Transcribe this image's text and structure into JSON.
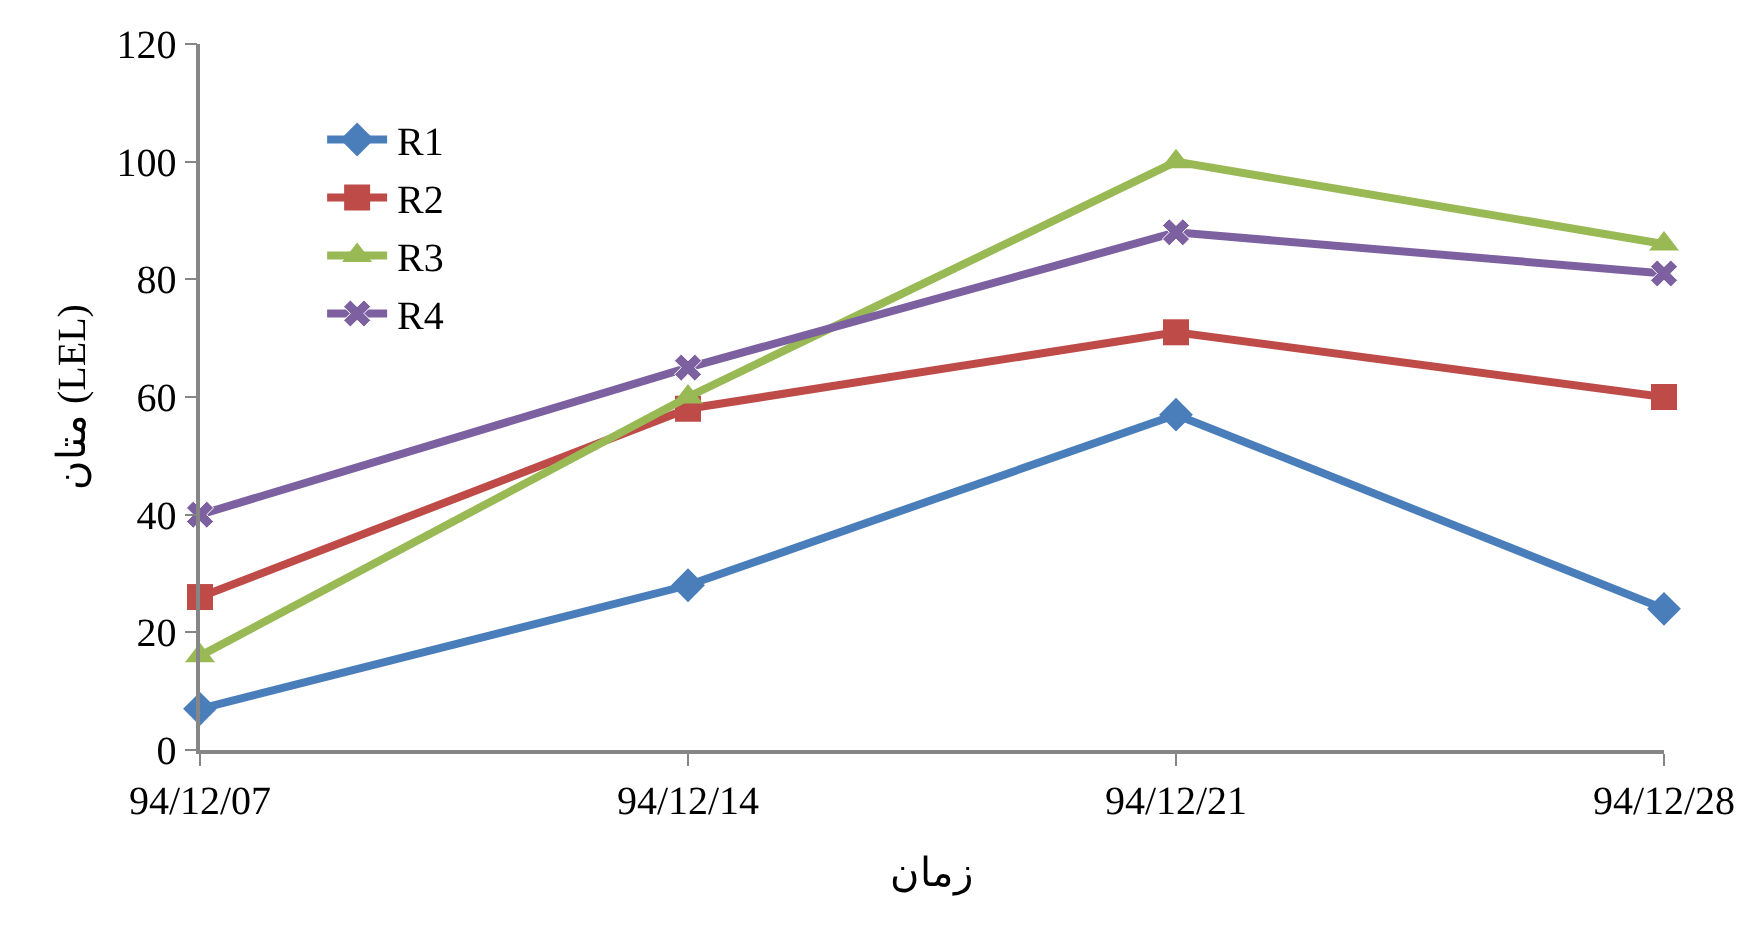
{
  "chart_data": {
    "type": "line",
    "xlabel": "زمان",
    "ylabel": "متان (LEL)",
    "categories": [
      "94/12/07",
      "94/12/14",
      "94/12/21",
      "94/12/28"
    ],
    "ylim": [
      0,
      120
    ],
    "yticks": [
      0,
      20,
      40,
      60,
      80,
      100,
      120
    ],
    "grid": false,
    "legend": "top left",
    "series": [
      {
        "name": "R1",
        "color": "#4a7ebb",
        "marker": "diamond",
        "values": [
          7,
          28,
          57,
          24
        ]
      },
      {
        "name": "R2",
        "color": "#be4b48",
        "marker": "square",
        "values": [
          26,
          58,
          71,
          60
        ]
      },
      {
        "name": "R3",
        "color": "#98b954",
        "marker": "triangle",
        "values": [
          16,
          60,
          100,
          86
        ]
      },
      {
        "name": "R4",
        "color": "#7d60a0",
        "marker": "cross",
        "values": [
          40,
          65,
          88,
          81
        ]
      }
    ]
  }
}
